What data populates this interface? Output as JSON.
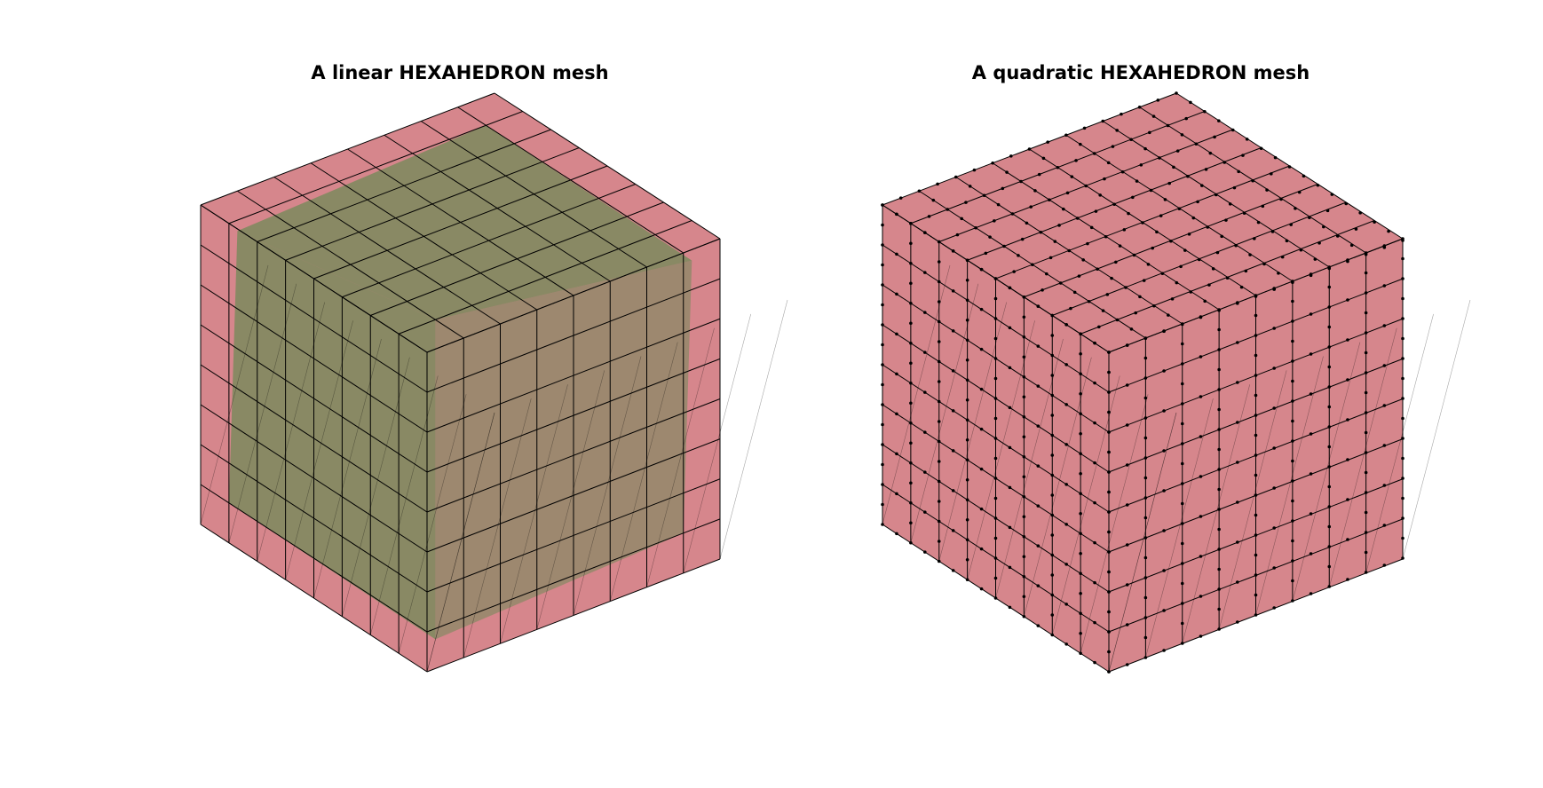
{
  "figure": {
    "panels": [
      {
        "title": "A linear HEXAHEDRON mesh",
        "mesh_type": "linear",
        "element": "HEXAHEDRON",
        "divisions": 8,
        "show_nodes": false,
        "colors": {
          "outer_face": "#d47f86",
          "inner_face": "#6f8a57",
          "edge": "#000000"
        }
      },
      {
        "title": "A quadratic HEXAHEDRON mesh",
        "mesh_type": "quadratic",
        "element": "HEXAHEDRON",
        "divisions": 8,
        "show_nodes": true,
        "colors": {
          "outer_face": "#d47f86",
          "inner_face": "#d47f86",
          "edge": "#000000",
          "node": "#000000"
        }
      }
    ]
  }
}
